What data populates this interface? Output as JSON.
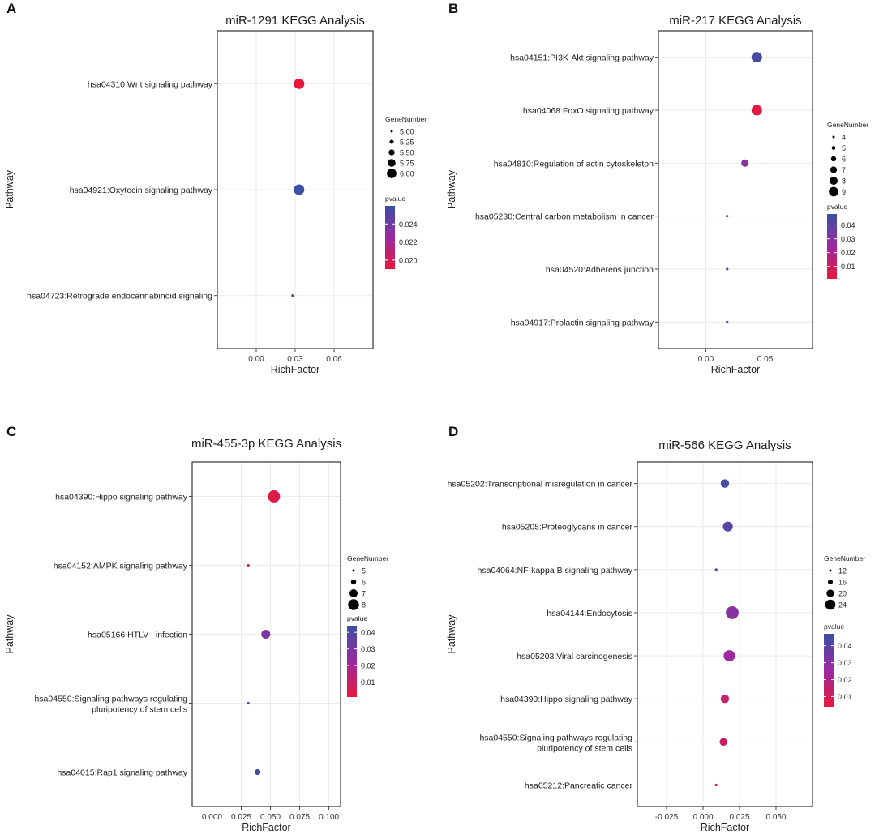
{
  "colors": {
    "low_p": "#e8173a",
    "high_p": "#3b4fa3",
    "grid": "#ebebeb",
    "frame": "#333333"
  },
  "chart_data": [
    {
      "panel": "A",
      "type": "scatter",
      "title": "miR-1291 KEGG Analysis",
      "xlabel": "RichFactor",
      "ylabel": "Pathway",
      "xlim": [
        -0.03,
        0.09
      ],
      "xticks": [
        "0.00",
        "0.03",
        "0.06"
      ],
      "xtick_values": [
        0.0,
        0.03,
        0.06
      ],
      "categories": [
        "hsa04310:Wnt signaling pathway",
        "hsa04921:Oxytocin signaling pathway",
        "hsa04723:Retrograde endocannabinoid signaling"
      ],
      "richfactor": [
        0.033,
        0.033,
        0.028
      ],
      "gene_number": [
        6,
        6,
        5
      ],
      "pvalue": [
        0.019,
        0.026,
        0.026
      ],
      "size_legend": {
        "title": "GeneNumber",
        "labels": [
          "5.00",
          "5.25",
          "5.50",
          "5.75",
          "6.00"
        ],
        "values": [
          5,
          5.25,
          5.5,
          5.75,
          6
        ]
      },
      "color_legend": {
        "title": "pvalue",
        "labels": [
          "0.024",
          "0.022",
          "0.020"
        ],
        "values": [
          0.024,
          0.022,
          0.02
        ],
        "range": [
          0.019,
          0.026
        ]
      }
    },
    {
      "panel": "B",
      "type": "scatter",
      "title": "miR-217 KEGG Analysis",
      "xlabel": "RichFactor",
      "ylabel": "Pathway",
      "xlim": [
        -0.04,
        0.09
      ],
      "xticks": [
        "0.00",
        "0.05"
      ],
      "xtick_values": [
        0.0,
        0.05
      ],
      "categories": [
        "hsa04151:PI3K-Akt signaling pathway",
        "hsa04068:FoxO signaling pathway",
        "hsa04810:Regulation of actin cytoskeleton",
        "hsa05230:Central carbon metabolism in cancer",
        "hsa04520:Adherens junction",
        "hsa04917:Prolactin signaling pathway"
      ],
      "richfactor": [
        0.043,
        0.043,
        0.033,
        0.018,
        0.018,
        0.018
      ],
      "gene_number": [
        9,
        9,
        7,
        4,
        4,
        4
      ],
      "pvalue": [
        0.045,
        0.003,
        0.03,
        0.045,
        0.045,
        0.045
      ],
      "size_legend": {
        "title": "GeneNumber",
        "labels": [
          "4",
          "5",
          "6",
          "7",
          "8",
          "9"
        ],
        "values": [
          4,
          5,
          6,
          7,
          8,
          9
        ]
      },
      "color_legend": {
        "title": "pvalue",
        "labels": [
          "0.04",
          "0.03",
          "0.02",
          "0.01"
        ],
        "values": [
          0.04,
          0.03,
          0.02,
          0.01
        ],
        "range": [
          0.001,
          0.048
        ]
      }
    },
    {
      "panel": "C",
      "type": "scatter",
      "title": "miR-455-3p KEGG Analysis",
      "xlabel": "RichFactor",
      "ylabel": "Pathway",
      "xlim": [
        -0.017,
        0.11
      ],
      "xticks": [
        "0.000",
        "0.025",
        "0.050",
        "0.075",
        "0.100"
      ],
      "xtick_values": [
        0.0,
        0.025,
        0.05,
        0.075,
        0.1
      ],
      "categories": [
        "hsa04390:Hippo signaling pathway",
        "hsa04152:AMPK signaling pathway",
        "hsa05166:HTLV-I infection",
        "hsa04550:Signaling pathways regulating|pluripotency of stem cells",
        "hsa04015:Rap1 signaling pathway"
      ],
      "richfactor": [
        0.053,
        0.031,
        0.046,
        0.031,
        0.039
      ],
      "gene_number": [
        8,
        5,
        7,
        5,
        6
      ],
      "pvalue": [
        0.004,
        0.01,
        0.03,
        0.04,
        0.043
      ],
      "size_legend": {
        "title": "GeneNumber",
        "labels": [
          "5",
          "6",
          "7",
          "8"
        ],
        "values": [
          5,
          6,
          7,
          8
        ]
      },
      "color_legend": {
        "title": "pvalue",
        "labels": [
          "0.04",
          "0.03",
          "0.02",
          "0.01"
        ],
        "values": [
          0.04,
          0.03,
          0.02,
          0.01
        ],
        "range": [
          0.001,
          0.044
        ]
      }
    },
    {
      "panel": "D",
      "type": "scatter",
      "title": "miR-566 KEGG Analysis",
      "xlabel": "RichFactor",
      "ylabel": "Pathway",
      "xlim": [
        -0.045,
        0.075
      ],
      "xticks": [
        "-0.025",
        "0.000",
        "0.025",
        "0.050"
      ],
      "xtick_values": [
        -0.025,
        0.0,
        0.025,
        0.05
      ],
      "categories": [
        "hsa05202:Transcriptional misregulation in cancer",
        "hsa05205:Proteoglycans in cancer",
        "hsa04064:NF-kappa B signaling pathway",
        "hsa04144:Endocytosis",
        "hsa05203:Viral carcinogenesis",
        "hsa04390:Hippo signaling pathway",
        "hsa04550:Signaling pathways regulating|pluripotency of stem cells",
        "hsa05212:Pancreatic cancer"
      ],
      "richfactor": [
        0.015,
        0.017,
        0.009,
        0.02,
        0.018,
        0.015,
        0.014,
        0.009
      ],
      "gene_number": [
        20,
        22,
        11,
        26,
        24,
        20,
        19,
        11
      ],
      "pvalue": [
        0.045,
        0.04,
        0.042,
        0.03,
        0.025,
        0.015,
        0.012,
        0.006
      ],
      "size_legend": {
        "title": "GeneNumber",
        "labels": [
          "12",
          "16",
          "20",
          "24"
        ],
        "values": [
          12,
          16,
          20,
          24
        ]
      },
      "color_legend": {
        "title": "pvalue",
        "labels": [
          "0.04",
          "0.03",
          "0.02",
          "0.01"
        ],
        "values": [
          0.04,
          0.03,
          0.02,
          0.01
        ],
        "range": [
          0.004,
          0.047
        ]
      }
    }
  ]
}
